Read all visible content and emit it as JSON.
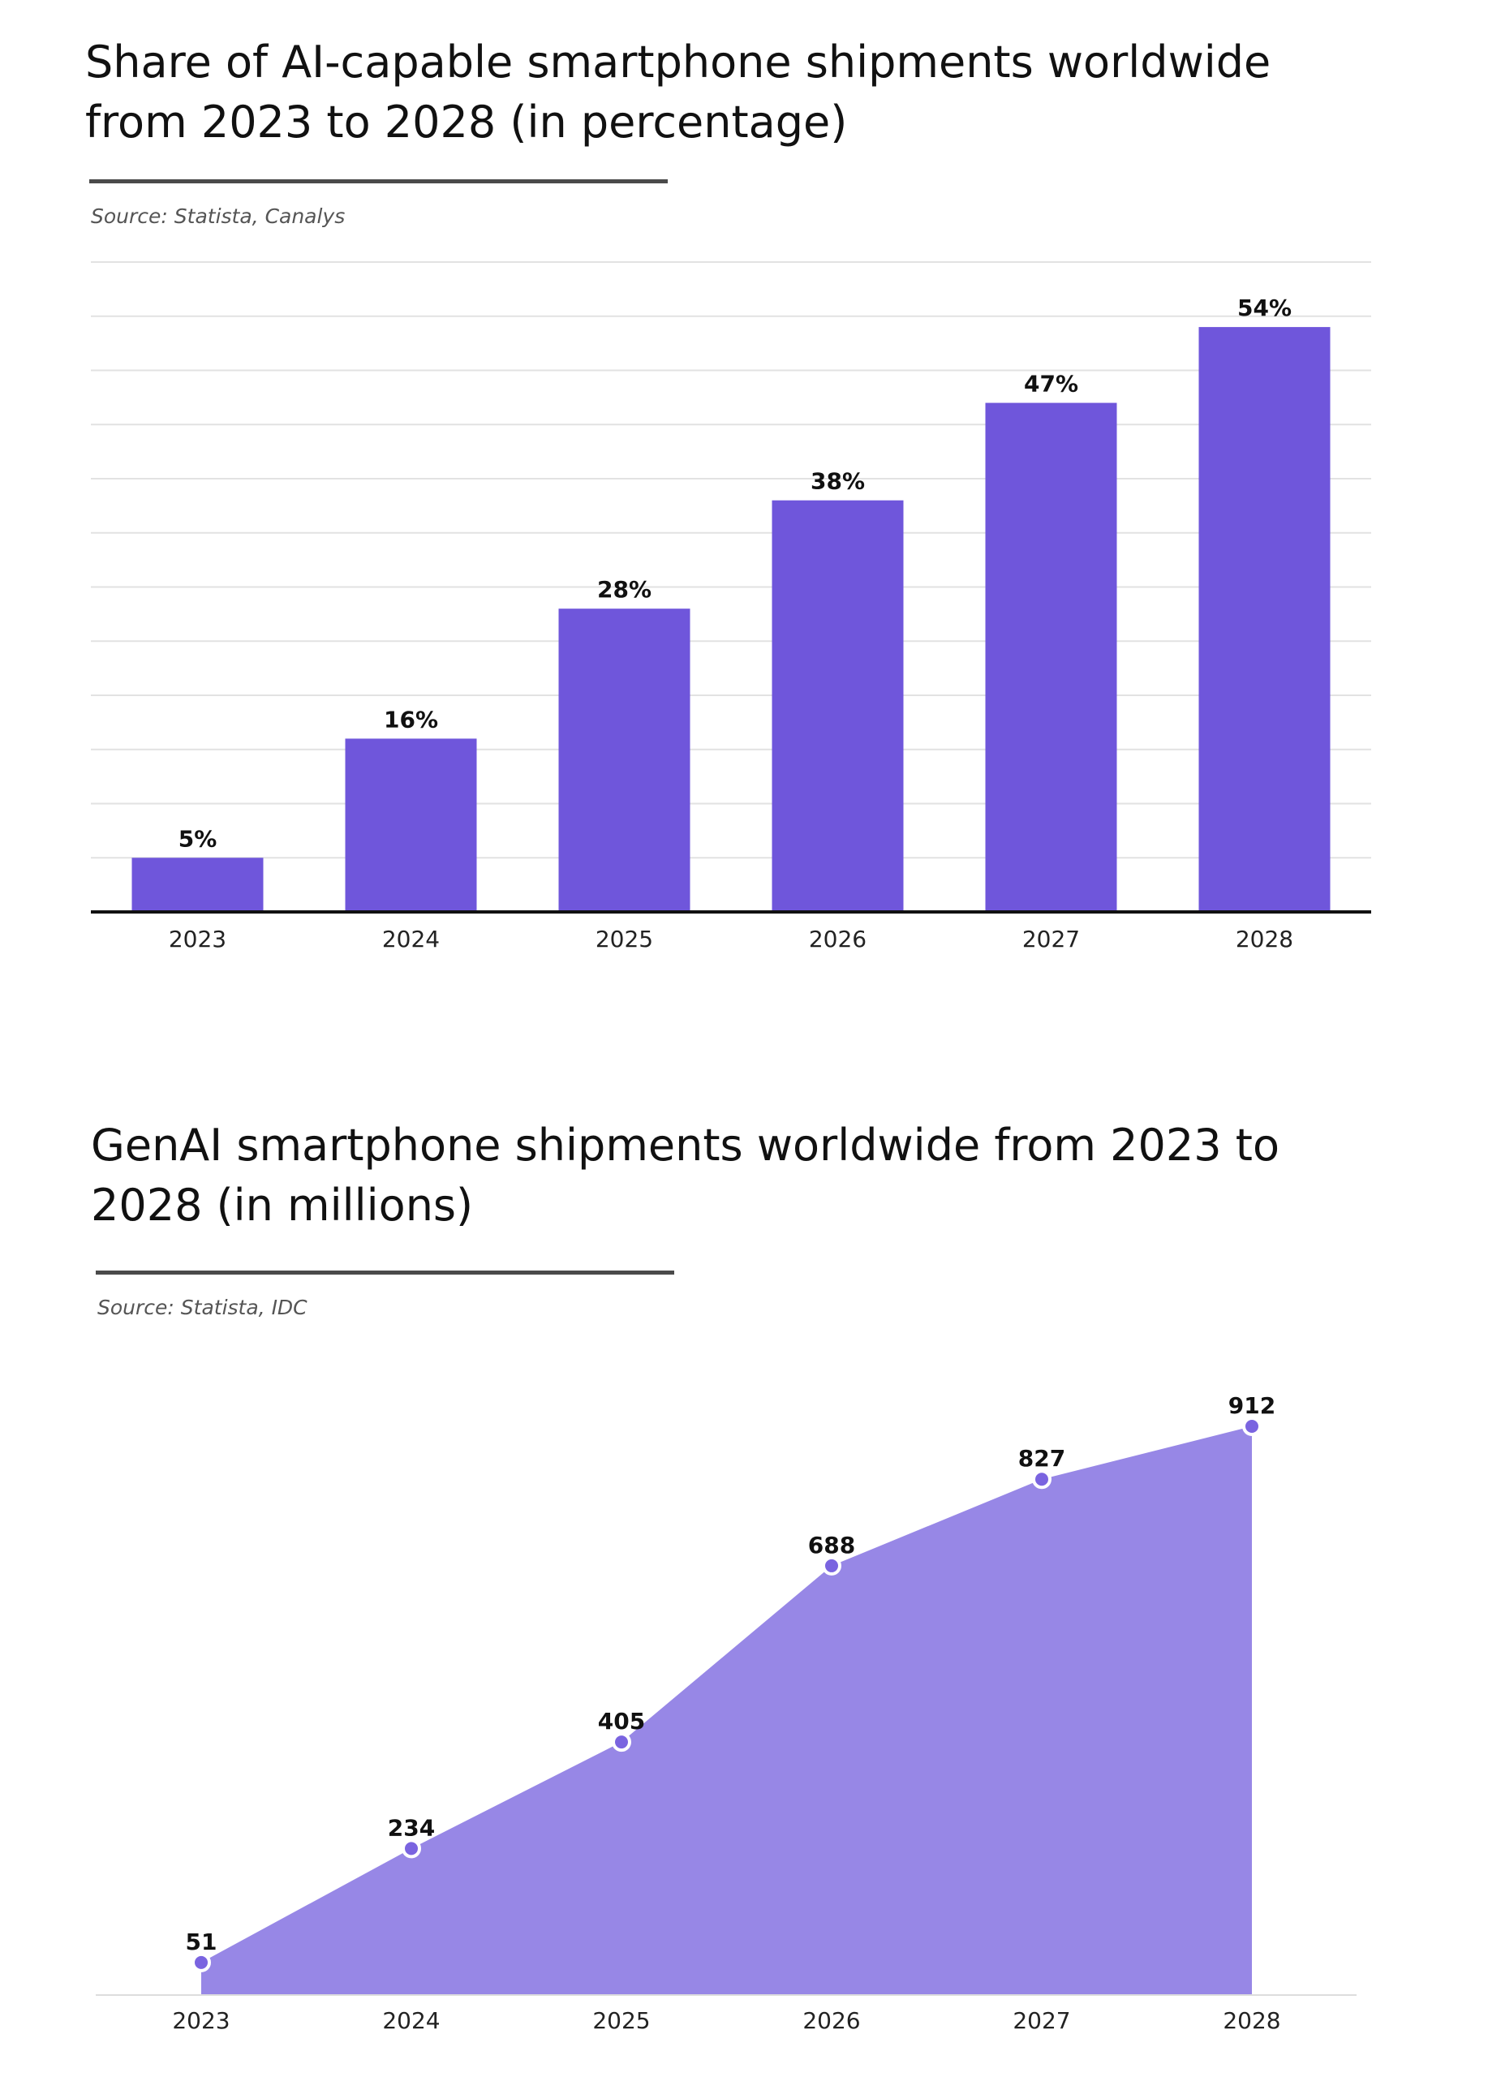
{
  "chart_data": [
    {
      "type": "bar",
      "title": "Share of AI-capable smartphone shipments worldwide from 2023 to 2028 (in percentage)",
      "source": "Source: Statista, Canalys",
      "categories": [
        "2023",
        "2024",
        "2025",
        "2026",
        "2027",
        "2028"
      ],
      "values": [
        5,
        16,
        28,
        38,
        47,
        54
      ],
      "data_labels": [
        "5%",
        "16%",
        "28%",
        "38%",
        "47%",
        "54%"
      ],
      "ylim": [
        0,
        60
      ],
      "grid": true,
      "colors": {
        "bar": "#6f56db",
        "grid": "#e2e2e2",
        "axis": "#111111"
      }
    },
    {
      "type": "area",
      "title": "GenAI smartphone shipments worldwide from 2023 to 2028 (in millions)",
      "source": "Source: Statista, IDC",
      "categories": [
        "2023",
        "2024",
        "2025",
        "2026",
        "2027",
        "2028"
      ],
      "values": [
        51,
        234,
        405,
        688,
        827,
        912
      ],
      "data_labels": [
        "51",
        "234",
        "405",
        "688",
        "827",
        "912"
      ],
      "ylim": [
        0,
        912
      ],
      "grid": false,
      "colors": {
        "fill": "#9787e6",
        "marker": "#7a64e0",
        "marker_stroke": "#ffffff",
        "axis": "#dddddd"
      }
    }
  ]
}
